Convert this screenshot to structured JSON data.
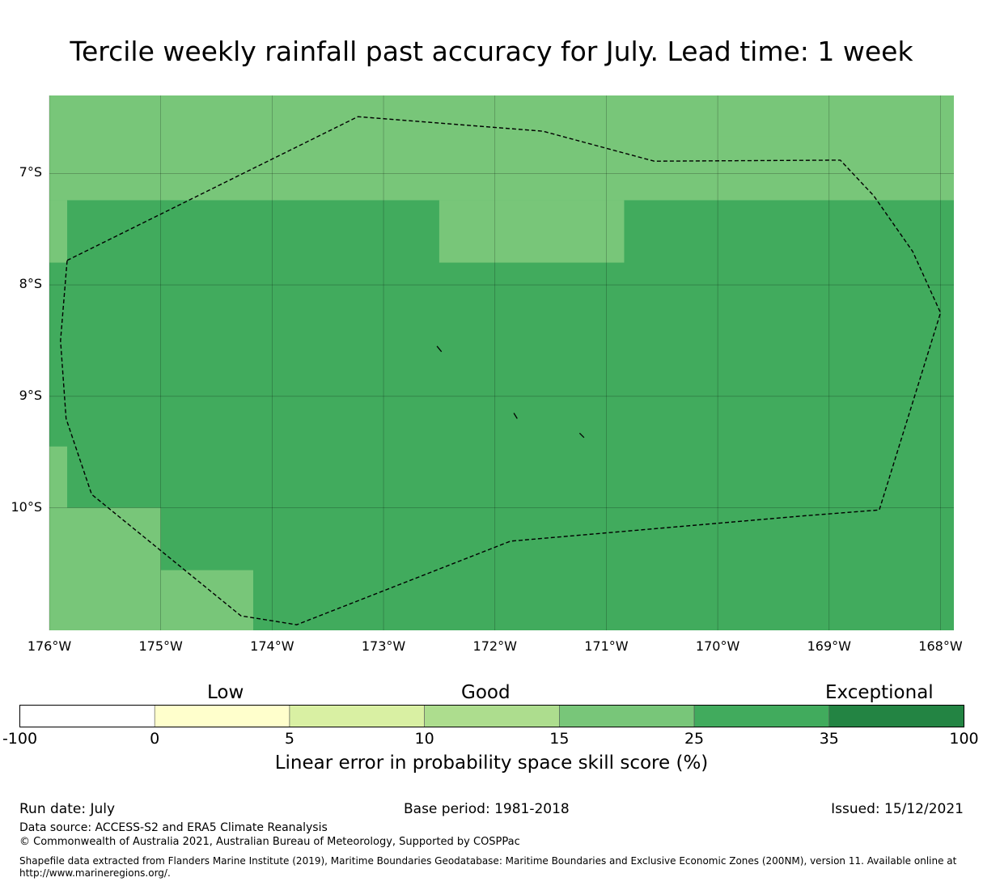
{
  "title": "Tercile weekly rainfall past accuracy for July. Lead time: 1 week",
  "map": {
    "lon_range": [
      -176,
      -167.88
    ],
    "lat_range": [
      -11.1,
      -6.3
    ],
    "lat_labels": [
      {
        "lat": -7,
        "text": "7°S"
      },
      {
        "lat": -8,
        "text": "8°S"
      },
      {
        "lat": -9,
        "text": "9°S"
      },
      {
        "lat": -10,
        "text": "10°S"
      }
    ],
    "lon_labels": [
      {
        "lon": -176,
        "text": "176°W"
      },
      {
        "lon": -175,
        "text": "175°W"
      },
      {
        "lon": -174,
        "text": "174°W"
      },
      {
        "lon": -173,
        "text": "173°W"
      },
      {
        "lon": -172,
        "text": "172°W"
      },
      {
        "lon": -171,
        "text": "171°W"
      },
      {
        "lon": -170,
        "text": "170°W"
      },
      {
        "lon": -169,
        "text": "169°W"
      },
      {
        "lon": -168,
        "text": "168°W"
      }
    ],
    "base_category_color": "#41ab5d",
    "cells": [
      {
        "lon": [
          -176,
          -167.88
        ],
        "lat": [
          -7.24,
          -6.3
        ],
        "color": "#78c679"
      },
      {
        "lon": [
          -176,
          -175.84
        ],
        "lat": [
          -7.8,
          -7.24
        ],
        "color": "#78c679"
      },
      {
        "lon": [
          -172.5,
          -170.84
        ],
        "lat": [
          -7.8,
          -7.24
        ],
        "color": "#78c679"
      },
      {
        "lon": [
          -170,
          -167.88
        ],
        "lat": [
          -6.67,
          -6.3
        ],
        "color": "#78c679"
      },
      {
        "lon": [
          -176,
          -175.84
        ],
        "lat": [
          -10.0,
          -9.45
        ],
        "color": "#78c679"
      },
      {
        "lon": [
          -176,
          -175
        ],
        "lat": [
          -11.1,
          -10.0
        ],
        "color": "#78c679"
      },
      {
        "lon": [
          -175,
          -174.17
        ],
        "lat": [
          -11.1,
          -10.56
        ],
        "color": "#78c679"
      }
    ],
    "eez_boundary": [
      [
        -175.84,
        -7.78
      ],
      [
        -173.23,
        -6.49
      ],
      [
        -171.57,
        -6.62
      ],
      [
        -170.57,
        -6.89
      ],
      [
        -168.9,
        -6.88
      ],
      [
        -168.6,
        -7.2
      ],
      [
        -168.25,
        -7.7
      ],
      [
        -168.0,
        -8.25
      ],
      [
        -168.55,
        -10.02
      ],
      [
        -169.2,
        -10.07
      ],
      [
        -171.86,
        -10.3
      ],
      [
        -173.78,
        -11.05
      ],
      [
        -174.28,
        -10.97
      ],
      [
        -175.62,
        -9.88
      ],
      [
        -175.85,
        -9.2
      ],
      [
        -175.9,
        -8.5
      ],
      [
        -175.84,
        -7.78
      ]
    ],
    "islands": [
      [
        [
          -172.52,
          -8.55
        ],
        [
          -172.48,
          -8.6
        ]
      ],
      [
        [
          -171.83,
          -9.15
        ],
        [
          -171.8,
          -9.2
        ]
      ],
      [
        [
          -171.24,
          -9.33
        ],
        [
          -171.2,
          -9.37
        ]
      ]
    ]
  },
  "colorbar": {
    "bins": [
      {
        "color": "#ffffff"
      },
      {
        "color": "#ffffcc"
      },
      {
        "color": "#d9f0a3"
      },
      {
        "color": "#addd8e"
      },
      {
        "color": "#78c679"
      },
      {
        "color": "#41ab5d"
      },
      {
        "color": "#238443"
      }
    ],
    "ticks": [
      "-100",
      "0",
      "5",
      "10",
      "15",
      "25",
      "35",
      "100"
    ],
    "categories": [
      "Low",
      "Good",
      "Exceptional"
    ],
    "label": "Linear error in probability space skill score (%)"
  },
  "footer": {
    "run_date": "Run date: July",
    "base_period": "Base period: 1981-2018",
    "issued": "Issued: 15/12/2021",
    "data_source": "Data source: ACCESS-S2 and ERA5 Climate Reanalysis",
    "copyright": "© Commonwealth of Australia 2021, Australian Bureau of Meteorology, Supported by COSPPac",
    "shapefile_line1": "Shapefile data extracted from Flanders Marine Institute (2019), Maritime Boundaries Geodatabase: Maritime Boundaries and Exclusive Economic Zones (200NM), version 11. Available online at",
    "shapefile_line2": "http://www.marineregions.org/."
  }
}
